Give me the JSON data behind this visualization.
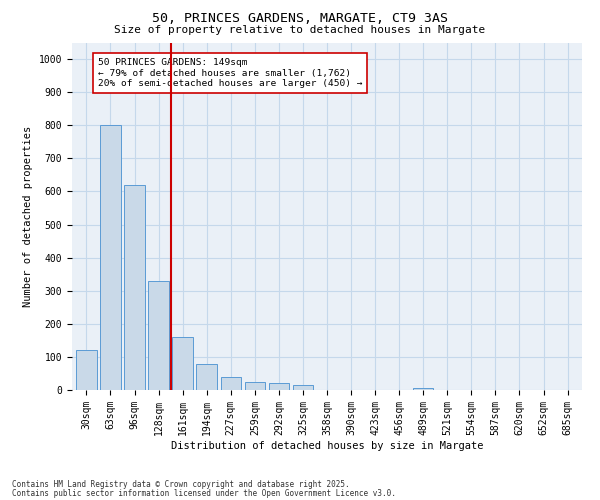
{
  "title_line1": "50, PRINCES GARDENS, MARGATE, CT9 3AS",
  "title_line2": "Size of property relative to detached houses in Margate",
  "xlabel": "Distribution of detached houses by size in Margate",
  "ylabel": "Number of detached properties",
  "footer_line1": "Contains HM Land Registry data © Crown copyright and database right 2025.",
  "footer_line2": "Contains public sector information licensed under the Open Government Licence v3.0.",
  "categories": [
    "30sqm",
    "63sqm",
    "96sqm",
    "128sqm",
    "161sqm",
    "194sqm",
    "227sqm",
    "259sqm",
    "292sqm",
    "325sqm",
    "358sqm",
    "390sqm",
    "423sqm",
    "456sqm",
    "489sqm",
    "521sqm",
    "554sqm",
    "587sqm",
    "620sqm",
    "652sqm",
    "685sqm"
  ],
  "values": [
    120,
    800,
    620,
    330,
    160,
    80,
    38,
    25,
    22,
    15,
    0,
    0,
    0,
    0,
    5,
    0,
    0,
    0,
    0,
    0,
    0
  ],
  "bar_color": "#c9d9e8",
  "bar_edge_color": "#5b9bd5",
  "grid_color": "#c5d8eb",
  "background_color": "#eaf0f7",
  "vline_color": "#cc0000",
  "vline_x": 3.5,
  "annotation_text_line1": "50 PRINCES GARDENS: 149sqm",
  "annotation_text_line2": "← 79% of detached houses are smaller (1,762)",
  "annotation_text_line3": "20% of semi-detached houses are larger (450) →",
  "ylim": [
    0,
    1050
  ],
  "yticks": [
    0,
    100,
    200,
    300,
    400,
    500,
    600,
    700,
    800,
    900,
    1000
  ],
  "title_fontsize": 9.5,
  "subtitle_fontsize": 8,
  "tick_fontsize": 7,
  "label_fontsize": 7.5,
  "footer_fontsize": 5.5
}
